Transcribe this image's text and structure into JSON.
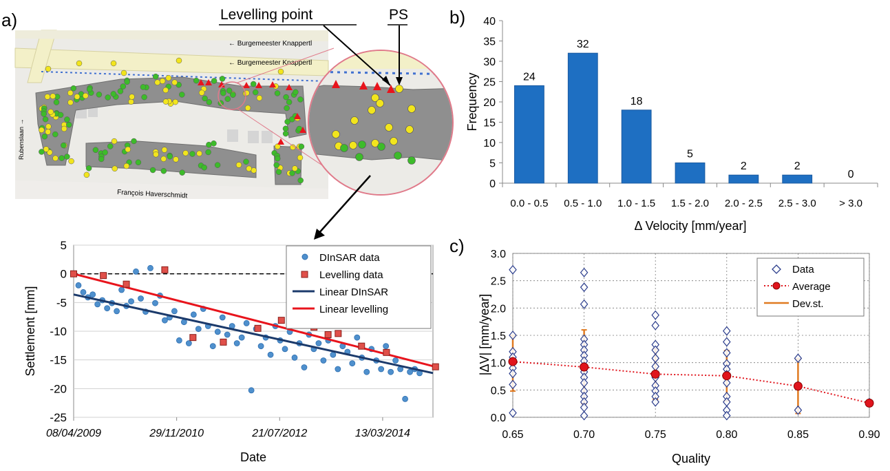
{
  "panels": {
    "a": "a)",
    "b": "b)",
    "c": "c)"
  },
  "map": {
    "street_top_1": "← Burgemeester Knappertl",
    "street_top_2": "← Burgemeester Knappertl",
    "street_left": "Rubenslaan →",
    "street_bottom": "François Haverschmidt",
    "callout_levelling": "Levelling point",
    "callout_ps": "PS",
    "colors": {
      "building": "#8f8f8f",
      "road": "#f3f0c8",
      "ps_green": "#3dbb2a",
      "ps_yellow": "#f2e51d",
      "levelling_red": "#e8141c",
      "zoom_ring": "#e07a8a"
    },
    "icons": [
      "map-background",
      "zoom-magnifier-circle",
      "arrow-to-timeseries"
    ]
  },
  "chart_data": [
    {
      "id": "settlement",
      "type": "scatter",
      "xlabel": "Date",
      "ylabel": "Settlement [mm]",
      "x_tick_labels": [
        "08/04/2009",
        "29/11/2010",
        "21/07/2012",
        "13/03/2014"
      ],
      "x_tick_dates": [
        "2009-04-08",
        "2010-11-29",
        "2012-07-21",
        "2014-03-13"
      ],
      "xlim": [
        "2009-04-08",
        "2014-12-31"
      ],
      "ylim": [
        -25,
        5
      ],
      "y_ticks": [
        5,
        0,
        -5,
        -10,
        -15,
        -20,
        -25
      ],
      "grid": "horizontal",
      "legend_position": "top-right",
      "zero_line": "dashed",
      "series": [
        {
          "name": "DInSAR data",
          "kind": "scatter",
          "marker": "circle",
          "color": "#4f90cd",
          "points": [
            [
              "2009-04-08",
              0
            ],
            [
              "2009-05-06",
              -2
            ],
            [
              "2009-06-03",
              -3.2
            ],
            [
              "2009-06-30",
              -4.1
            ],
            [
              "2009-07-28",
              -3.6
            ],
            [
              "2009-08-25",
              -5.3
            ],
            [
              "2009-09-22",
              -4.6
            ],
            [
              "2009-10-20",
              -6
            ],
            [
              "2009-11-17",
              -5.1
            ],
            [
              "2009-12-15",
              -6.5
            ],
            [
              "2010-01-12",
              -2.8
            ],
            [
              "2010-02-09",
              -5.6
            ],
            [
              "2010-03-09",
              -4.8
            ],
            [
              "2010-04-06",
              0.4
            ],
            [
              "2010-05-04",
              -4.3
            ],
            [
              "2010-06-01",
              -6.6
            ],
            [
              "2010-06-29",
              1.0
            ],
            [
              "2010-07-27",
              -5.1
            ],
            [
              "2010-08-24",
              -3.8
            ],
            [
              "2010-09-21",
              -8.1
            ],
            [
              "2010-10-19",
              -7.6
            ],
            [
              "2010-11-16",
              -6.5
            ],
            [
              "2010-12-14",
              -11.6
            ],
            [
              "2011-01-11",
              -8.4
            ],
            [
              "2011-02-08",
              -12.1
            ],
            [
              "2011-03-08",
              -7.1
            ],
            [
              "2011-04-05",
              -9.6
            ],
            [
              "2011-05-03",
              -6.1
            ],
            [
              "2011-05-31",
              -9.1
            ],
            [
              "2011-06-28",
              -12.6
            ],
            [
              "2011-07-26",
              -10.1
            ],
            [
              "2011-08-23",
              -7.6
            ],
            [
              "2011-09-20",
              -10.6
            ],
            [
              "2011-10-18",
              -9.1
            ],
            [
              "2011-11-15",
              -12.1
            ],
            [
              "2011-12-13",
              -11.1
            ],
            [
              "2012-01-10",
              -8.6
            ],
            [
              "2012-02-07",
              -20.3
            ],
            [
              "2012-03-06",
              -9.6
            ],
            [
              "2012-04-03",
              -12.6
            ],
            [
              "2012-05-01",
              -11.1
            ],
            [
              "2012-05-29",
              -14.1
            ],
            [
              "2012-06-26",
              -9.1
            ],
            [
              "2012-07-24",
              -11.6
            ],
            [
              "2012-08-21",
              -13.1
            ],
            [
              "2012-09-18",
              -10.1
            ],
            [
              "2012-10-16",
              -14.6
            ],
            [
              "2012-11-13",
              -12.1
            ],
            [
              "2012-12-11",
              -16.3
            ],
            [
              "2013-01-08",
              -10.6
            ],
            [
              "2013-02-05",
              -13.1
            ],
            [
              "2013-03-05",
              -12.1
            ],
            [
              "2013-04-02",
              -15.1
            ],
            [
              "2013-04-30",
              -11.6
            ],
            [
              "2013-05-28",
              -14.1
            ],
            [
              "2013-06-25",
              -16.6
            ],
            [
              "2013-07-23",
              -12.6
            ],
            [
              "2013-08-20",
              -13.6
            ],
            [
              "2013-09-17",
              -15.6
            ],
            [
              "2013-10-15",
              -11.1
            ],
            [
              "2013-11-12",
              -14.6
            ],
            [
              "2013-12-10",
              -17.1
            ],
            [
              "2014-01-07",
              -13.1
            ],
            [
              "2014-02-04",
              -15.1
            ],
            [
              "2014-03-04",
              -16.6
            ],
            [
              "2014-04-01",
              -12.6
            ],
            [
              "2014-04-29",
              -17.1
            ],
            [
              "2014-05-27",
              -15.1
            ],
            [
              "2014-06-24",
              -16.6
            ],
            [
              "2014-07-22",
              -21.8
            ],
            [
              "2014-08-19",
              -17.1
            ],
            [
              "2014-09-16",
              -16.6
            ],
            [
              "2014-10-14",
              -17.3
            ]
          ]
        },
        {
          "name": "Levelling data",
          "kind": "scatter",
          "marker": "square",
          "color": "#e0504a",
          "points": [
            [
              "2009-04-08",
              0
            ],
            [
              "2009-09-28",
              -0.3
            ],
            [
              "2010-02-09",
              -1.8
            ],
            [
              "2010-09-21",
              0.7
            ],
            [
              "2011-03-04",
              -11.1
            ],
            [
              "2011-08-28",
              -11.9
            ],
            [
              "2012-03-16",
              -9.5
            ],
            [
              "2012-07-31",
              -8.1
            ],
            [
              "2013-02-06",
              -9.3
            ],
            [
              "2013-04-29",
              -10.6
            ],
            [
              "2013-06-27",
              -10.4
            ],
            [
              "2013-11-10",
              -12.6
            ],
            [
              "2014-04-04",
              -13.7
            ],
            [
              "2015-01-15",
              -16.2
            ]
          ]
        },
        {
          "name": "Linear DInSAR",
          "kind": "line",
          "color": "#1b3a6b",
          "points": [
            [
              "2009-04-08",
              -3.6
            ],
            [
              "2014-12-31",
              -17.3
            ]
          ]
        },
        {
          "name": "Linear levelling",
          "kind": "line",
          "color": "#e8141c",
          "points": [
            [
              "2009-04-08",
              0
            ],
            [
              "2015-01-15",
              -16.2
            ]
          ]
        }
      ]
    },
    {
      "id": "histogram",
      "type": "bar",
      "xlabel": "Δ Velocity [mm/year]",
      "ylabel": "Frequency",
      "categories": [
        "0.0 - 0.5",
        "0.5 - 1.0",
        "1.0 - 1.5",
        "1.5 - 2.0",
        "2.0 - 2.5",
        "2.5 - 3.0",
        "> 3.0"
      ],
      "values": [
        24,
        32,
        18,
        5,
        2,
        2,
        0
      ],
      "value_labels": [
        "24",
        "32",
        "18",
        "5",
        "2",
        "2",
        "0"
      ],
      "ylim": [
        0,
        40
      ],
      "y_ticks": [
        0,
        5,
        10,
        15,
        20,
        25,
        30,
        35,
        40
      ],
      "bar_color": "#1e6fc2",
      "grid": "none"
    },
    {
      "id": "quality",
      "type": "scatter",
      "xlabel": "Quality",
      "ylabel": "|ΔV| [mm/year]",
      "x_ticks": [
        "0.65",
        "0.70",
        "0.75",
        "0.80",
        "0.85",
        "0.90"
      ],
      "xlim": [
        0.65,
        0.9
      ],
      "ylim": [
        0,
        3
      ],
      "y_ticks": [
        "0.0",
        "0.5",
        "1.0",
        "1.5",
        "2.0",
        "2.5",
        "3.0"
      ],
      "grid": "both-dotted",
      "legend_position": "top-right",
      "series": [
        {
          "name": "Data",
          "kind": "scatter",
          "marker": "diamond",
          "color": "#2b3d8c",
          "points": [
            [
              0.65,
              2.7
            ],
            [
              0.65,
              1.5
            ],
            [
              0.65,
              1.2
            ],
            [
              0.65,
              1.1
            ],
            [
              0.65,
              1.0
            ],
            [
              0.65,
              0.9
            ],
            [
              0.65,
              0.8
            ],
            [
              0.65,
              0.6
            ],
            [
              0.65,
              0.08
            ],
            [
              0.7,
              2.65
            ],
            [
              0.7,
              2.38
            ],
            [
              0.7,
              2.07
            ],
            [
              0.7,
              1.43
            ],
            [
              0.7,
              1.33
            ],
            [
              0.7,
              1.23
            ],
            [
              0.7,
              1.13
            ],
            [
              0.7,
              1.03
            ],
            [
              0.7,
              0.93
            ],
            [
              0.7,
              0.83
            ],
            [
              0.7,
              0.73
            ],
            [
              0.7,
              0.63
            ],
            [
              0.7,
              0.48
            ],
            [
              0.7,
              0.38
            ],
            [
              0.7,
              0.28
            ],
            [
              0.7,
              0.18
            ],
            [
              0.7,
              0.03
            ],
            [
              0.75,
              1.87
            ],
            [
              0.75,
              1.68
            ],
            [
              0.75,
              1.33
            ],
            [
              0.75,
              1.23
            ],
            [
              0.75,
              1.08
            ],
            [
              0.75,
              0.93
            ],
            [
              0.75,
              0.73
            ],
            [
              0.75,
              0.58
            ],
            [
              0.75,
              0.48
            ],
            [
              0.75,
              0.38
            ],
            [
              0.75,
              0.28
            ],
            [
              0.8,
              1.58
            ],
            [
              0.8,
              1.38
            ],
            [
              0.8,
              1.18
            ],
            [
              0.8,
              0.98
            ],
            [
              0.8,
              0.88
            ],
            [
              0.8,
              0.78
            ],
            [
              0.8,
              0.63
            ],
            [
              0.8,
              0.38
            ],
            [
              0.8,
              0.28
            ],
            [
              0.8,
              0.13
            ],
            [
              0.8,
              0.03
            ],
            [
              0.85,
              1.08
            ],
            [
              0.85,
              0.58
            ],
            [
              0.85,
              0.13
            ],
            [
              0.9,
              0.27
            ]
          ]
        },
        {
          "name": "Average",
          "kind": "line",
          "marker": "circle",
          "line_style": "dotted",
          "color": "#e0141c",
          "points": [
            [
              0.65,
              1.02
            ],
            [
              0.7,
              0.92
            ],
            [
              0.75,
              0.79
            ],
            [
              0.8,
              0.76
            ],
            [
              0.85,
              0.57
            ],
            [
              0.9,
              0.26
            ]
          ]
        },
        {
          "name": "Dev.st.",
          "kind": "errorbar",
          "color": "#e07a20",
          "ranges": [
            [
              0.65,
              0.48,
              1.5
            ],
            [
              0.7,
              0.25,
              1.6
            ],
            [
              0.75,
              0.33,
              1.25
            ],
            [
              0.8,
              0.3,
              1.22
            ],
            [
              0.85,
              0.07,
              1.07
            ],
            [
              0.9,
              0.26,
              0.26
            ]
          ]
        }
      ]
    }
  ]
}
